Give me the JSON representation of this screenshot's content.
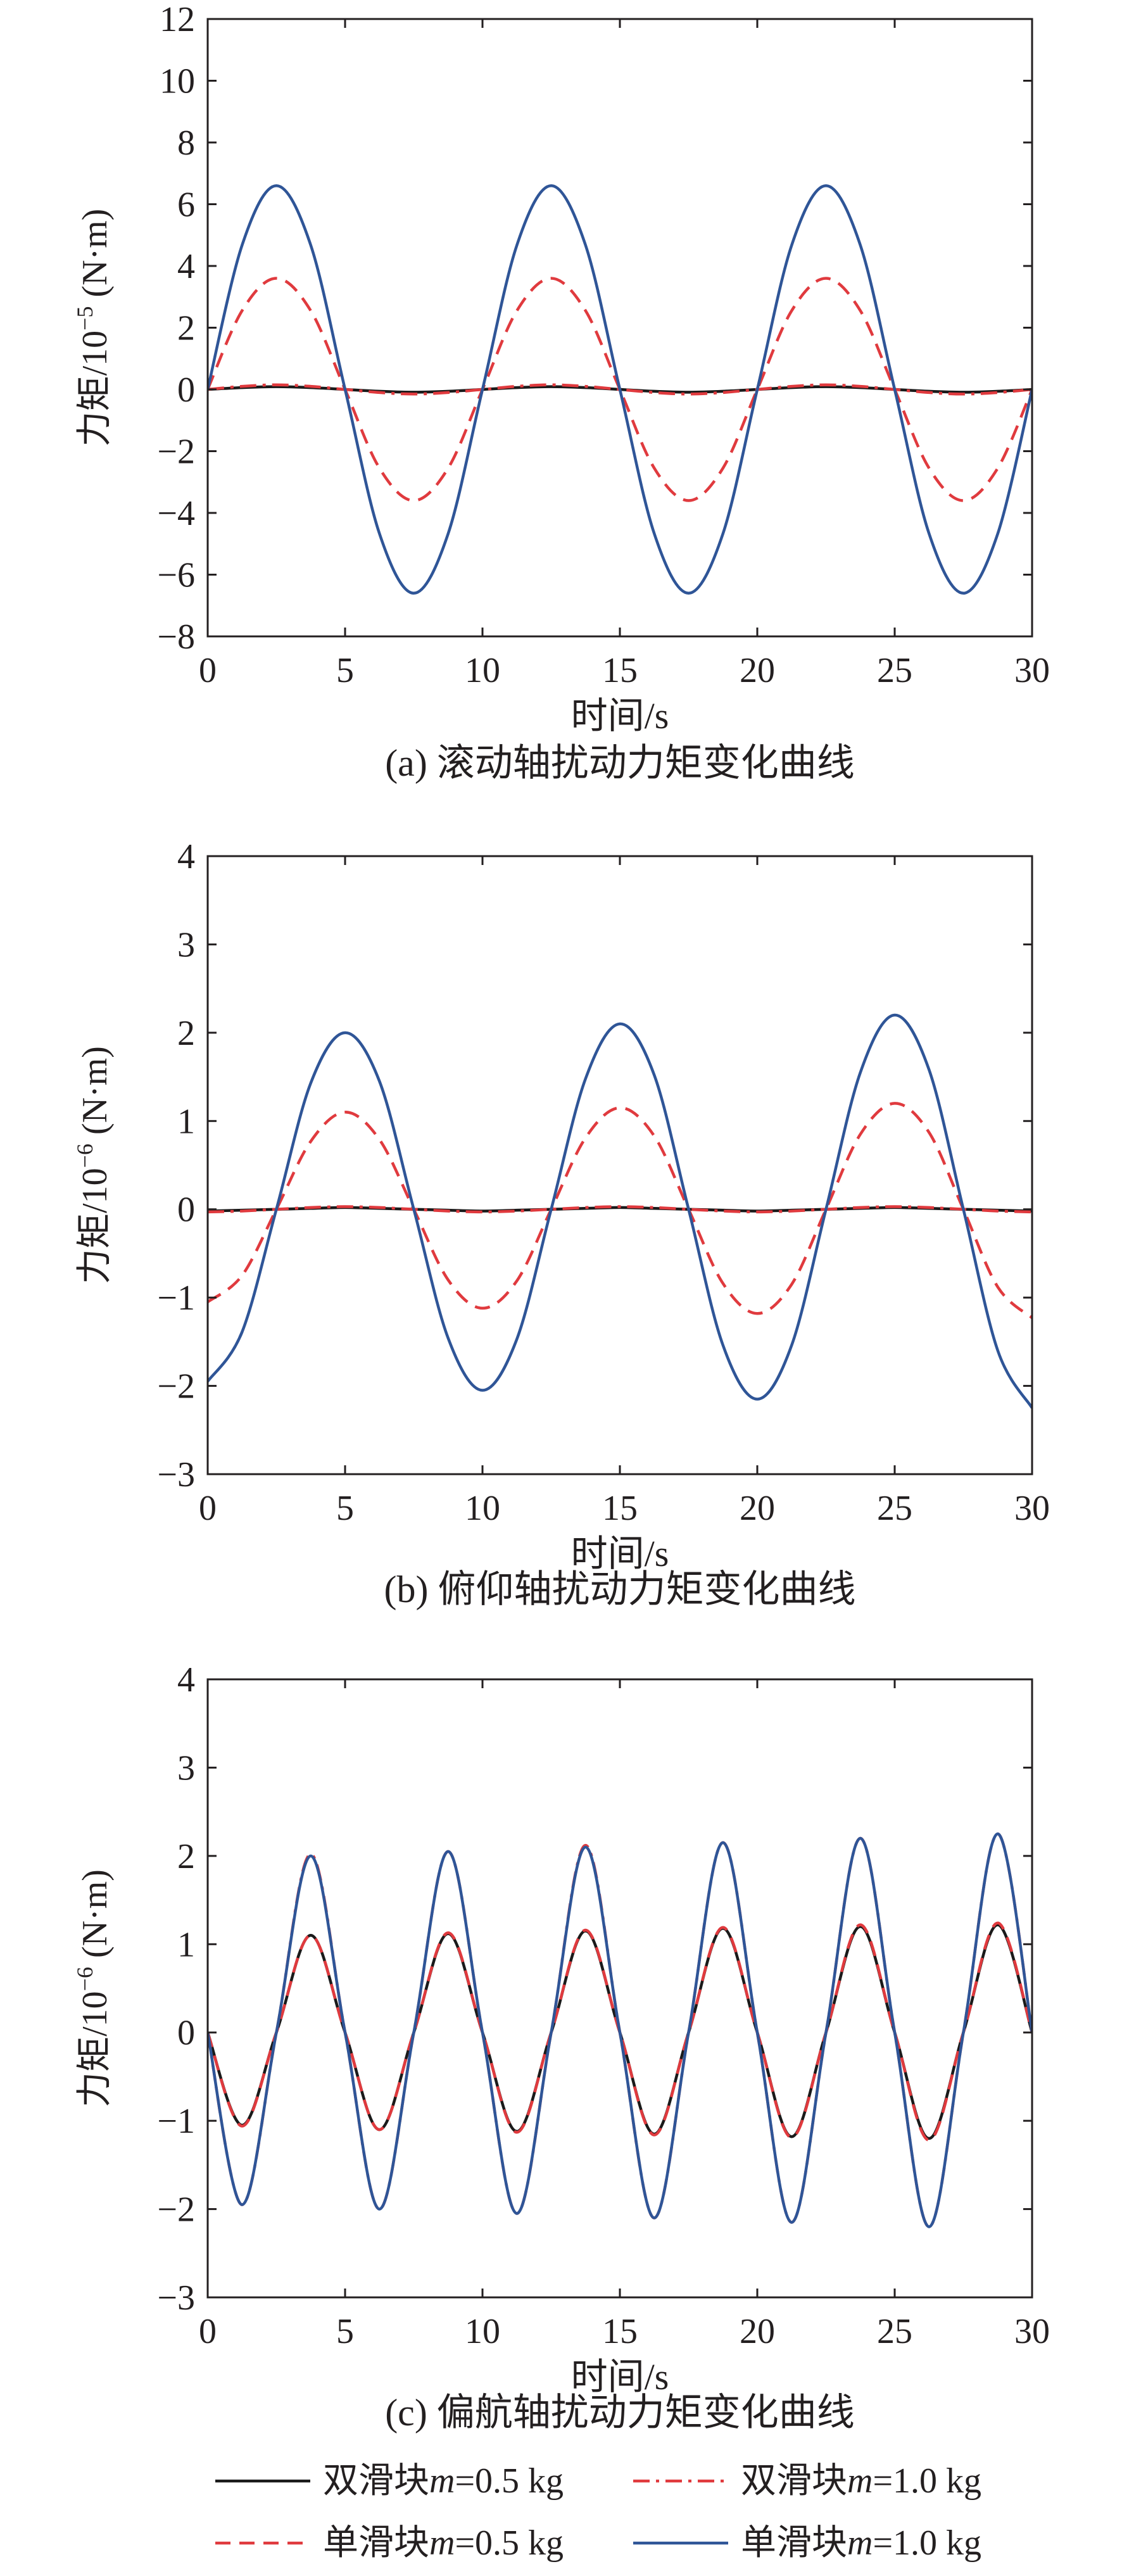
{
  "colors": {
    "axis": "#231f20",
    "black_series": "#1a1a1a",
    "red_series": "#e03a3e",
    "blue_series": "#2f5597"
  },
  "legend": {
    "items": [
      {
        "prefix": "双滑块",
        "var": "m",
        "suffix": "=0.5 kg",
        "style": "solid",
        "color": "#1a1a1a"
      },
      {
        "prefix": "双滑块",
        "var": "m",
        "suffix": "=1.0 kg",
        "style": "dashdot",
        "color": "#e03a3e"
      },
      {
        "prefix": "单滑块",
        "var": "m",
        "suffix": "=0.5 kg",
        "style": "dashed",
        "color": "#e03a3e"
      },
      {
        "prefix": "单滑块",
        "var": "m",
        "suffix": "=1.0 kg",
        "style": "solid",
        "color": "#2f5597"
      }
    ]
  },
  "chart_data": [
    {
      "type": "line",
      "caption": "(a) 滚动轴扰动力矩变化曲线",
      "xlabel": "时间/s",
      "ylabel_base": "力矩/10",
      "ylabel_exp": "−5",
      "ylabel_unit": " (N·m)",
      "xlim": [
        0,
        30
      ],
      "ylim": [
        -8,
        12
      ],
      "xticks": [
        "0",
        "5",
        "10",
        "15",
        "20",
        "25",
        "30"
      ],
      "yticks": [
        "−8",
        "−6",
        "−4",
        "−2",
        "0",
        "2",
        "4",
        "6",
        "8",
        "10",
        "12"
      ],
      "series": [
        {
          "name": "双滑块m=0.5 kg",
          "x": [
            0,
            1.25,
            2.5,
            3.75,
            5,
            6.25,
            7.5,
            8.75,
            10,
            11.25,
            12.5,
            13.75,
            15,
            16.25,
            17.5,
            18.75,
            20,
            21.25,
            22.5,
            23.75,
            25,
            26.25,
            27.5,
            28.75,
            30
          ],
          "y": [
            0,
            0.06,
            0.09,
            0.06,
            0,
            -0.06,
            -0.09,
            -0.06,
            0,
            0.06,
            0.09,
            0.06,
            0,
            -0.06,
            -0.09,
            -0.06,
            0,
            0.06,
            0.09,
            0.06,
            0,
            -0.06,
            -0.09,
            -0.06,
            0
          ]
        },
        {
          "name": "双滑块m=1.0 kg",
          "x": [
            0,
            1.25,
            2.5,
            3.75,
            5,
            6.25,
            7.5,
            8.75,
            10,
            11.25,
            12.5,
            13.75,
            15,
            16.25,
            17.5,
            18.75,
            20,
            21.25,
            22.5,
            23.75,
            25,
            26.25,
            27.5,
            28.75,
            30
          ],
          "y": [
            0,
            0.1,
            0.15,
            0.1,
            0,
            -0.1,
            -0.15,
            -0.1,
            0,
            0.1,
            0.15,
            0.1,
            0,
            -0.1,
            -0.15,
            -0.1,
            0,
            0.1,
            0.15,
            0.1,
            0,
            -0.1,
            -0.15,
            -0.1,
            0
          ]
        },
        {
          "name": "单滑块m=0.5 kg",
          "x": [
            0,
            1.25,
            2.5,
            3.75,
            5,
            6.25,
            7.5,
            8.75,
            10,
            11.25,
            12.5,
            13.75,
            15,
            16.25,
            17.5,
            18.75,
            20,
            21.25,
            22.5,
            23.75,
            25,
            26.25,
            27.5,
            28.75,
            30
          ],
          "y": [
            0,
            2.55,
            3.6,
            2.55,
            0,
            -2.55,
            -3.6,
            -2.55,
            0,
            2.55,
            3.6,
            2.55,
            0,
            -2.55,
            -3.6,
            -2.55,
            0,
            2.55,
            3.6,
            2.55,
            0,
            -2.55,
            -3.6,
            -2.55,
            0
          ]
        },
        {
          "name": "单滑块m=1.0 kg",
          "x": [
            0,
            1.25,
            2.5,
            3.75,
            5,
            6.25,
            7.5,
            8.75,
            10,
            11.25,
            12.5,
            13.75,
            15,
            16.25,
            17.5,
            18.75,
            20,
            21.25,
            22.5,
            23.75,
            25,
            26.25,
            27.5,
            28.75,
            30
          ],
          "y": [
            0,
            4.67,
            6.6,
            4.67,
            0,
            -4.67,
            -6.6,
            -4.67,
            0,
            4.67,
            6.6,
            4.67,
            0,
            -4.67,
            -6.6,
            -4.67,
            0,
            4.67,
            6.6,
            4.67,
            0,
            -4.67,
            -6.6,
            -4.67,
            0
          ]
        }
      ]
    },
    {
      "type": "line",
      "caption": "(b) 俯仰轴扰动力矩变化曲线",
      "xlabel": "时间/s",
      "ylabel_base": "力矩/10",
      "ylabel_exp": "−6",
      "ylabel_unit": " (N·m)",
      "xlim": [
        0,
        30
      ],
      "ylim": [
        -3,
        4
      ],
      "xticks": [
        "0",
        "5",
        "10",
        "15",
        "20",
        "25",
        "30"
      ],
      "yticks": [
        "−3",
        "−2",
        "−1",
        "0",
        "1",
        "2",
        "3",
        "4"
      ],
      "series": [
        {
          "name": "双滑块m=0.5 kg",
          "x": [
            0,
            1.25,
            2.5,
            3.75,
            5,
            6.25,
            7.5,
            8.75,
            10,
            11.25,
            12.5,
            13.75,
            15,
            16.25,
            17.5,
            18.75,
            20,
            21.25,
            22.5,
            23.75,
            25,
            26.25,
            27.5,
            28.75,
            30
          ],
          "y": [
            -0.02,
            -0.01,
            0,
            0.01,
            0.02,
            0.01,
            0,
            -0.01,
            -0.02,
            -0.01,
            0,
            0.01,
            0.02,
            0.01,
            0,
            -0.01,
            -0.02,
            -0.01,
            0,
            0.01,
            0.02,
            0.01,
            0,
            -0.01,
            -0.02
          ]
        },
        {
          "name": "双滑块m=1.0 kg",
          "x": [
            0,
            1.25,
            2.5,
            3.75,
            5,
            6.25,
            7.5,
            8.75,
            10,
            11.25,
            12.5,
            13.75,
            15,
            16.25,
            17.5,
            18.75,
            20,
            21.25,
            22.5,
            23.75,
            25,
            26.25,
            27.5,
            28.75,
            30
          ],
          "y": [
            -0.03,
            -0.02,
            0,
            0.02,
            0.03,
            0.02,
            0,
            -0.02,
            -0.03,
            -0.02,
            0,
            0.02,
            0.03,
            0.02,
            0,
            -0.02,
            -0.03,
            -0.02,
            0,
            0.02,
            0.03,
            0.02,
            0,
            -0.02,
            -0.03
          ]
        },
        {
          "name": "单滑块m=0.5 kg",
          "x": [
            0,
            1.25,
            2.5,
            3.75,
            5,
            6.25,
            7.5,
            8.75,
            10,
            11.25,
            12.5,
            13.75,
            15,
            16.25,
            17.5,
            18.75,
            20,
            21.25,
            22.5,
            23.75,
            25,
            26.25,
            27.5,
            28.75,
            30
          ],
          "y": [
            -1.05,
            -0.75,
            0,
            0.77,
            1.1,
            0.79,
            0,
            -0.8,
            -1.12,
            -0.81,
            0,
            0.81,
            1.15,
            0.83,
            0,
            -0.84,
            -1.18,
            -0.85,
            0,
            0.85,
            1.2,
            0.87,
            0,
            -0.88,
            -1.23
          ]
        },
        {
          "name": "单滑块m=1.0 kg",
          "x": [
            0,
            1.25,
            2.5,
            3.75,
            5,
            6.25,
            7.5,
            8.75,
            10,
            11.25,
            12.5,
            13.75,
            15,
            16.25,
            17.5,
            18.75,
            20,
            21.25,
            22.5,
            23.75,
            25,
            26.25,
            27.5,
            28.75,
            30
          ],
          "y": [
            -1.95,
            -1.39,
            0,
            1.43,
            2.0,
            1.45,
            0,
            -1.46,
            -2.05,
            -1.47,
            0,
            1.48,
            2.1,
            1.52,
            0,
            -1.54,
            -2.15,
            -1.54,
            0,
            1.55,
            2.2,
            1.58,
            0,
            -1.6,
            -2.25
          ]
        }
      ]
    },
    {
      "type": "line",
      "caption": "(c) 偏航轴扰动力矩变化曲线",
      "xlabel": "时间/s",
      "ylabel_base": "力矩/10",
      "ylabel_exp": "−6",
      "ylabel_unit": " (N·m)",
      "xlim": [
        0,
        30
      ],
      "ylim": [
        -3,
        4
      ],
      "xticks": [
        "0",
        "5",
        "10",
        "15",
        "20",
        "25",
        "30"
      ],
      "yticks": [
        "−3",
        "−2",
        "−1",
        "0",
        "1",
        "2",
        "3",
        "4"
      ],
      "series": [
        {
          "name": "双滑块m=0.5 kg",
          "x": [
            0,
            1.25,
            2.5,
            3.75,
            5,
            6.25,
            7.5,
            8.75,
            10,
            11.25,
            12.5,
            13.75,
            15,
            16.25,
            17.5,
            18.75,
            20,
            21.25,
            22.5,
            23.75,
            25,
            26.25,
            27.5,
            28.75,
            30
          ],
          "y": [
            0,
            -1.05,
            0,
            1.1,
            0,
            -1.1,
            0,
            1.12,
            0,
            -1.12,
            0,
            1.15,
            0,
            -1.15,
            0,
            1.18,
            0,
            -1.18,
            0,
            1.2,
            0,
            -1.2,
            0,
            1.22,
            0
          ]
        },
        {
          "name": "双滑块m=1.0 kg",
          "x": [
            0,
            1.25,
            2.5,
            3.75,
            5,
            6.25,
            7.5,
            8.75,
            10,
            11.25,
            12.5,
            13.75,
            15,
            16.25,
            17.5,
            18.75,
            20,
            21.25,
            22.5,
            23.75,
            25,
            26.25,
            27.5,
            28.75,
            30
          ],
          "y": [
            0,
            -1.95,
            0,
            2.02,
            0,
            -2.0,
            0,
            2.05,
            0,
            -2.05,
            0,
            2.12,
            0,
            -2.1,
            0,
            2.15,
            0,
            -2.15,
            0,
            2.2,
            0,
            -2.2,
            0,
            2.25,
            0
          ]
        },
        {
          "name": "单滑块m=0.5 kg",
          "x": [
            0,
            1.25,
            2.5,
            3.75,
            5,
            6.25,
            7.5,
            8.75,
            10,
            11.25,
            12.5,
            13.75,
            15,
            16.25,
            17.5,
            18.75,
            20,
            21.25,
            22.5,
            23.75,
            25,
            26.25,
            27.5,
            28.75,
            30
          ],
          "y": [
            0,
            -1.06,
            0,
            1.1,
            0,
            -1.1,
            0,
            1.13,
            0,
            -1.13,
            0,
            1.16,
            0,
            -1.16,
            0,
            1.19,
            0,
            -1.19,
            0,
            1.22,
            0,
            -1.22,
            0,
            1.24,
            0
          ]
        },
        {
          "name": "单滑块m=1.0 kg",
          "x": [
            0,
            1.25,
            2.5,
            3.75,
            5,
            6.25,
            7.5,
            8.75,
            10,
            11.25,
            12.5,
            13.75,
            15,
            16.25,
            17.5,
            18.75,
            20,
            21.25,
            22.5,
            23.75,
            25,
            26.25,
            27.5,
            28.75,
            30
          ],
          "y": [
            0,
            -1.95,
            0,
            2.0,
            0,
            -2.0,
            0,
            2.05,
            0,
            -2.05,
            0,
            2.1,
            0,
            -2.1,
            0,
            2.15,
            0,
            -2.15,
            0,
            2.2,
            0,
            -2.2,
            0,
            2.25,
            0
          ]
        }
      ]
    }
  ]
}
